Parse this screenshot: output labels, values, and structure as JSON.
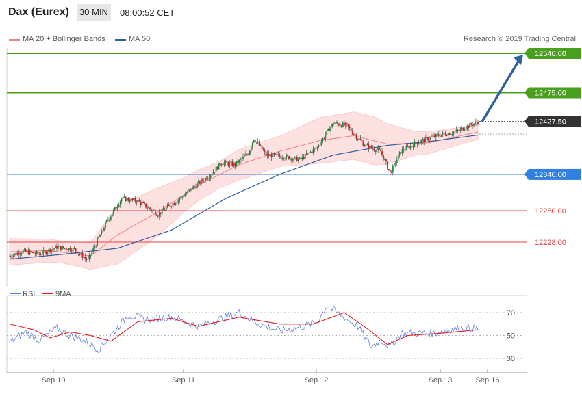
{
  "header": {
    "title": "Dax (Eurex)",
    "timeframe": "30 MIN",
    "time": "08:00:52 CET"
  },
  "legend": {
    "ma20_label": "MA 20 + Bollinger Bands",
    "ma50_label": "MA 50",
    "ma20_color": "#f08080",
    "ma50_color": "#2e5f9e",
    "copyright": "Research © 2019 Trading Central"
  },
  "chart_data": [
    {
      "type": "candlestick",
      "title": "Dax (Eurex) 30 MIN",
      "xlabel": "",
      "ylabel": "",
      "x_ticks": [
        "Sep 10",
        "Sep 11",
        "Sep 12",
        "Sep 13",
        "Sep 16"
      ],
      "ylim": [
        12170,
        12555
      ],
      "current_price": 12427.5,
      "levels": [
        {
          "value": 12540.0,
          "label": "12540.00",
          "color": "#4aa01e",
          "kind": "target"
        },
        {
          "value": 12475.0,
          "label": "12475.00",
          "color": "#4aa01e",
          "kind": "target"
        },
        {
          "value": 12427.5,
          "label": "12427.50",
          "color": "#333333",
          "kind": "current"
        },
        {
          "value": 12340.0,
          "label": "12340.00",
          "color": "#2f80e0",
          "kind": "pivot"
        },
        {
          "value": 12280.0,
          "label": "12280.00",
          "color": "#e83e3e",
          "kind": "support"
        },
        {
          "value": 12228.0,
          "label": "12228.00",
          "color": "#e83e3e",
          "kind": "support"
        }
      ],
      "forecast_arrow": {
        "from": 12427,
        "to": 12540,
        "color": "#2e5f9e"
      },
      "anchors": [
        [
          0,
          12205
        ],
        [
          10,
          12213
        ],
        [
          22,
          12208
        ],
        [
          35,
          12220
        ],
        [
          48,
          12216
        ],
        [
          58,
          12198
        ],
        [
          72,
          12262
        ],
        [
          83,
          12300
        ],
        [
          95,
          12296
        ],
        [
          110,
          12274
        ],
        [
          126,
          12300
        ],
        [
          137,
          12320
        ],
        [
          150,
          12342
        ],
        [
          157,
          12360
        ],
        [
          167,
          12356
        ],
        [
          177,
          12375
        ],
        [
          181,
          12400
        ],
        [
          190,
          12372
        ],
        [
          202,
          12370
        ],
        [
          215,
          12364
        ],
        [
          228,
          12385
        ],
        [
          240,
          12425
        ],
        [
          250,
          12420
        ],
        [
          263,
          12388
        ],
        [
          275,
          12378
        ],
        [
          282,
          12342
        ],
        [
          290,
          12378
        ],
        [
          303,
          12394
        ],
        [
          320,
          12406
        ],
        [
          330,
          12410
        ],
        [
          342,
          12422
        ],
        [
          347,
          12427
        ]
      ],
      "ma20_anchors": [
        [
          0,
          12212
        ],
        [
          30,
          12214
        ],
        [
          60,
          12205
        ],
        [
          80,
          12240
        ],
        [
          110,
          12278
        ],
        [
          140,
          12322
        ],
        [
          170,
          12356
        ],
        [
          200,
          12378
        ],
        [
          230,
          12396
        ],
        [
          255,
          12404
        ],
        [
          280,
          12390
        ],
        [
          310,
          12392
        ],
        [
          347,
          12410
        ]
      ],
      "ma50_anchors": [
        [
          0,
          12200
        ],
        [
          40,
          12208
        ],
        [
          80,
          12218
        ],
        [
          120,
          12248
        ],
        [
          160,
          12300
        ],
        [
          200,
          12340
        ],
        [
          240,
          12372
        ],
        [
          280,
          12388
        ],
        [
          310,
          12394
        ],
        [
          347,
          12405
        ]
      ],
      "bb_width_anchors": [
        [
          0,
          22
        ],
        [
          40,
          18
        ],
        [
          60,
          22
        ],
        [
          80,
          48
        ],
        [
          110,
          40
        ],
        [
          130,
          28
        ],
        [
          155,
          22
        ],
        [
          175,
          26
        ],
        [
          200,
          25
        ],
        [
          230,
          38
        ],
        [
          270,
          40
        ],
        [
          300,
          20
        ],
        [
          347,
          12
        ]
      ]
    },
    {
      "type": "line",
      "title": "RSI",
      "yticks": [
        30,
        50,
        70
      ],
      "ylim": [
        22,
        82
      ],
      "series": [
        {
          "name": "RSI",
          "color": "#6080e0",
          "anchors": [
            [
              0,
              44
            ],
            [
              12,
              53
            ],
            [
              22,
              46
            ],
            [
              35,
              56
            ],
            [
              45,
              50
            ],
            [
              55,
              46
            ],
            [
              66,
              38
            ],
            [
              75,
              50
            ],
            [
              88,
              68
            ],
            [
              100,
              64
            ],
            [
              120,
              66
            ],
            [
              140,
              58
            ],
            [
              155,
              64
            ],
            [
              170,
              70
            ],
            [
              185,
              60
            ],
            [
              200,
              54
            ],
            [
              215,
              57
            ],
            [
              228,
              62
            ],
            [
              235,
              76
            ],
            [
              245,
              68
            ],
            [
              258,
              58
            ],
            [
              268,
              40
            ],
            [
              275,
              46
            ],
            [
              282,
              40
            ],
            [
              290,
              52
            ],
            [
              300,
              52
            ],
            [
              315,
              52
            ],
            [
              330,
              56
            ],
            [
              347,
              56
            ]
          ]
        },
        {
          "name": "9MA",
          "color": "#e02020",
          "anchors": [
            [
              0,
              60
            ],
            [
              18,
              55
            ],
            [
              30,
              48
            ],
            [
              45,
              53
            ],
            [
              60,
              50
            ],
            [
              75,
              45
            ],
            [
              95,
              62
            ],
            [
              120,
              65
            ],
            [
              140,
              58
            ],
            [
              170,
              66
            ],
            [
              200,
              60
            ],
            [
              225,
              60
            ],
            [
              248,
              70
            ],
            [
              265,
              56
            ],
            [
              280,
              42
            ],
            [
              295,
              50
            ],
            [
              320,
              52
            ],
            [
              347,
              55
            ]
          ]
        }
      ]
    }
  ]
}
